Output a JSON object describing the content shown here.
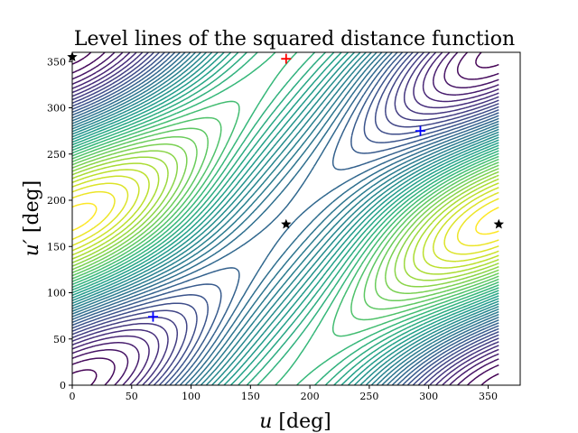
{
  "chart_data": {
    "type": "contour",
    "title": "Level lines of the squared distance function",
    "xlabel_var": "u",
    "ylabel_var": "u′",
    "unit": "[deg]",
    "xlim": [
      0,
      377
    ],
    "ylim": [
      0,
      360
    ],
    "xticks": [
      0,
      50,
      100,
      150,
      200,
      250,
      300,
      350
    ],
    "yticks": [
      0,
      50,
      100,
      150,
      200,
      250,
      300,
      350
    ],
    "contour_domain_x": [
      0,
      359
    ],
    "colormap": "viridis",
    "levels": 40,
    "markers": {
      "minima": {
        "symbol": "plus",
        "color": "#0000ff",
        "points": [
          [
            68,
            74
          ],
          [
            293,
            275
          ]
        ]
      },
      "maximum": {
        "symbol": "plus",
        "color": "#ff0000",
        "points": [
          [
            180,
            353
          ]
        ]
      },
      "saddles": {
        "symbol": "star",
        "color": "#000000",
        "points": [
          [
            0,
            355
          ],
          [
            180,
            174
          ],
          [
            359,
            174
          ]
        ]
      }
    }
  }
}
